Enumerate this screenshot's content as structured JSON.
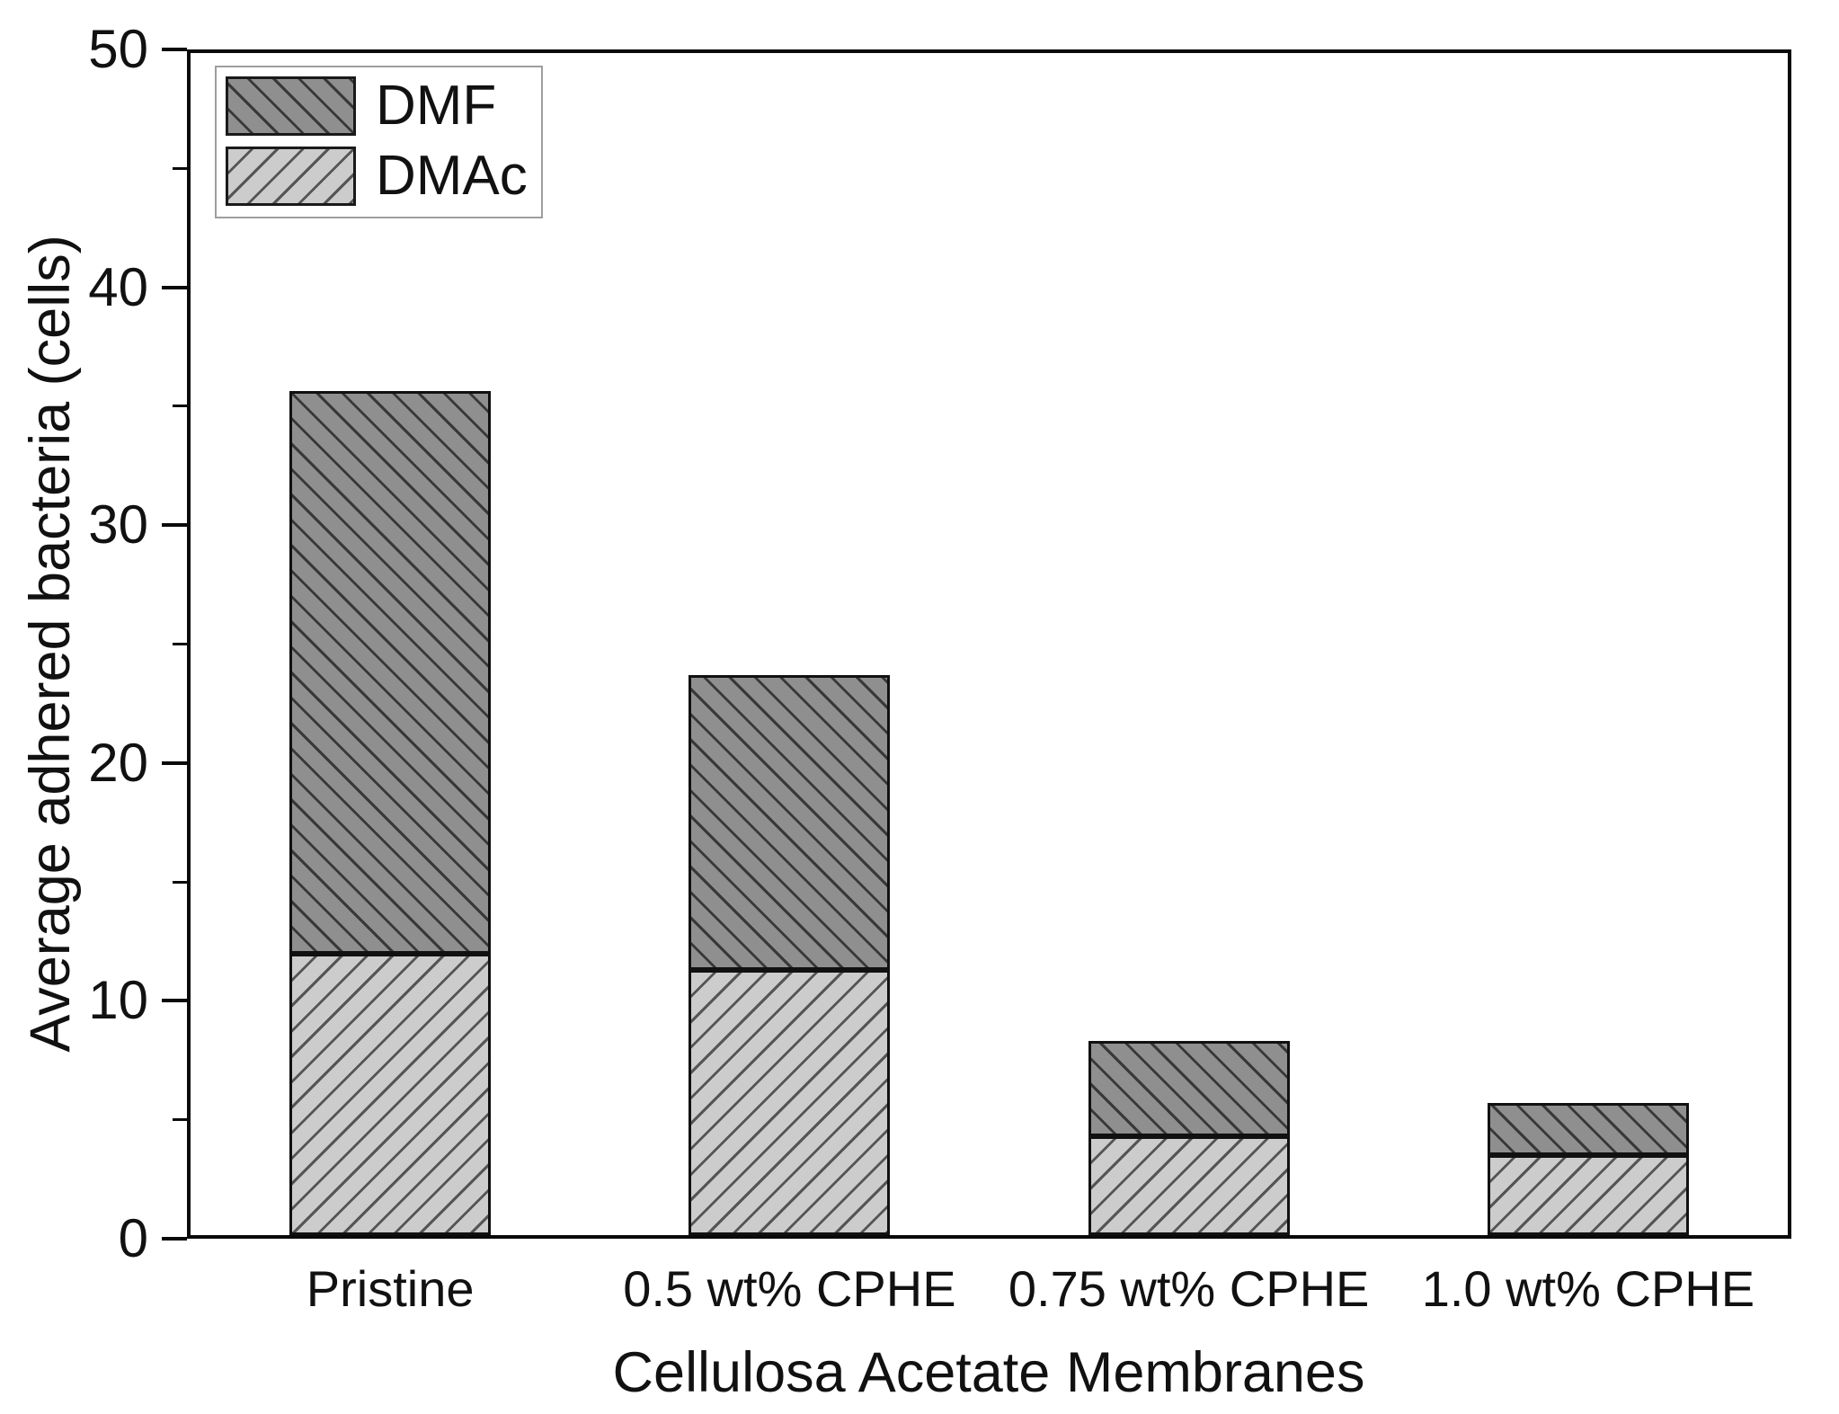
{
  "chart_data": {
    "type": "bar",
    "stacked": true,
    "title": "",
    "xlabel": "Cellulosa Acetate Membranes",
    "ylabel": "Average adhered bacteria (cells)",
    "categories": [
      "Pristine",
      "0.5 wt% CPHE",
      "0.75 wt% CPHE",
      "1.0 wt% CPHE"
    ],
    "series": [
      {
        "name": "DMAc",
        "stack_position": "bottom",
        "values": [
          11.9,
          11.2,
          4.2,
          3.4
        ],
        "fill": "#cccccc",
        "hatch": "/",
        "hatch_color": "#555555"
      },
      {
        "name": "DMF",
        "stack_position": "top",
        "values": [
          23.8,
          12.5,
          4.0,
          2.2
        ],
        "fill": "#8f8f8f",
        "hatch": "\\",
        "hatch_color": "#383838"
      }
    ],
    "stack_totals": [
      35.7,
      23.7,
      8.2,
      5.6
    ],
    "ylim": [
      0,
      50
    ],
    "ytick_major": [
      0,
      10,
      20,
      30,
      40,
      50
    ],
    "ytick_minor": [
      5,
      15,
      25,
      35,
      45
    ],
    "xticks_shown": false,
    "grid": false,
    "legend": {
      "position": "top-left",
      "entries": [
        "DMF",
        "DMAc"
      ]
    }
  },
  "colors": {
    "axis": "#0a0a0a",
    "text": "#111111",
    "dmf_fill": "#8f8f8f",
    "dmf_hatch": "#383838",
    "dmac_fill": "#cccccc",
    "dmac_hatch": "#555555",
    "legend_border": "#9e9e9e",
    "background": "#ffffff"
  }
}
